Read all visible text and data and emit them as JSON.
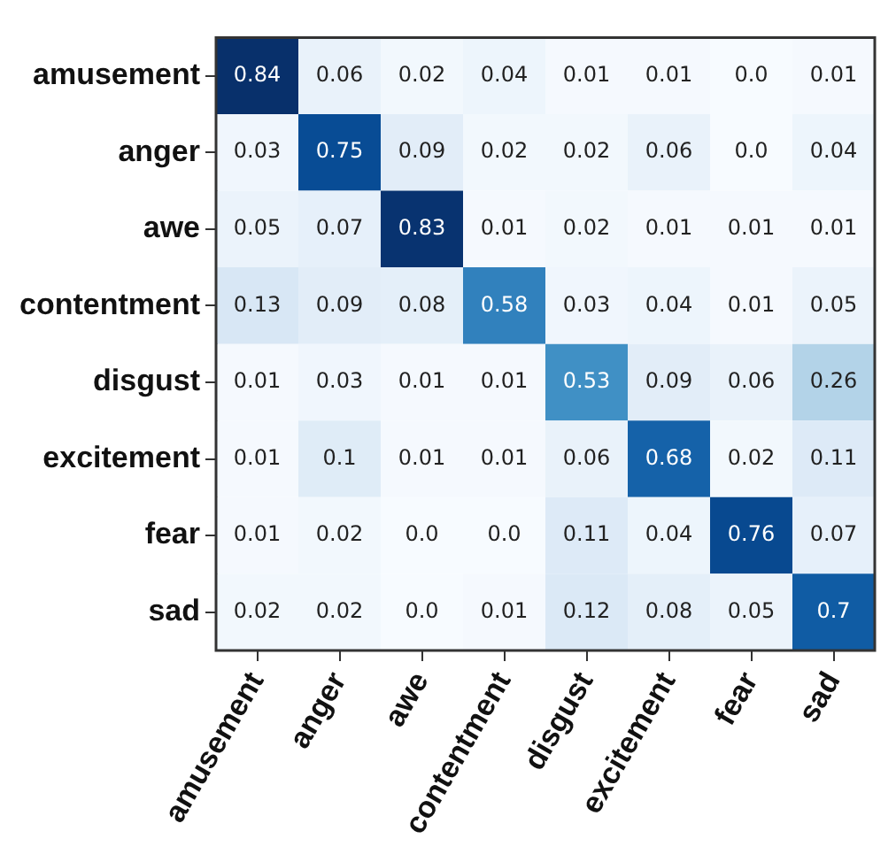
{
  "chart_data": {
    "type": "heatmap",
    "categories": [
      "amusement",
      "anger",
      "awe",
      "contentment",
      "disgust",
      "excitement",
      "fear",
      "sad"
    ],
    "y_categories": [
      "amusement",
      "anger",
      "awe",
      "contentment",
      "disgust",
      "excitement",
      "fear",
      "sad"
    ],
    "cells": [
      [
        0.84,
        0.06,
        0.02,
        0.04,
        0.01,
        0.01,
        0.0,
        0.01
      ],
      [
        0.03,
        0.75,
        0.09,
        0.02,
        0.02,
        0.06,
        0.0,
        0.04
      ],
      [
        0.05,
        0.07,
        0.83,
        0.01,
        0.02,
        0.01,
        0.01,
        0.01
      ],
      [
        0.13,
        0.09,
        0.08,
        0.58,
        0.03,
        0.04,
        0.01,
        0.05
      ],
      [
        0.01,
        0.03,
        0.01,
        0.01,
        0.53,
        0.09,
        0.06,
        0.26
      ],
      [
        0.01,
        0.1,
        0.01,
        0.01,
        0.06,
        0.68,
        0.02,
        0.11
      ],
      [
        0.01,
        0.02,
        0.0,
        0.0,
        0.11,
        0.04,
        0.76,
        0.07
      ],
      [
        0.02,
        0.02,
        0.0,
        0.01,
        0.12,
        0.08,
        0.05,
        0.7
      ]
    ],
    "cell_labels": [
      [
        "0.84",
        "0.06",
        "0.02",
        "0.04",
        "0.01",
        "0.01",
        "0.0",
        "0.01"
      ],
      [
        "0.03",
        "0.75",
        "0.09",
        "0.02",
        "0.02",
        "0.06",
        "0.0",
        "0.04"
      ],
      [
        "0.05",
        "0.07",
        "0.83",
        "0.01",
        "0.02",
        "0.01",
        "0.01",
        "0.01"
      ],
      [
        "0.13",
        "0.09",
        "0.08",
        "0.58",
        "0.03",
        "0.04",
        "0.01",
        "0.05"
      ],
      [
        "0.01",
        "0.03",
        "0.01",
        "0.01",
        "0.53",
        "0.09",
        "0.06",
        "0.26"
      ],
      [
        "0.01",
        "0.1",
        "0.01",
        "0.01",
        "0.06",
        "0.68",
        "0.02",
        "0.11"
      ],
      [
        "0.01",
        "0.02",
        "0.0",
        "0.0",
        "0.11",
        "0.04",
        "0.76",
        "0.07"
      ],
      [
        "0.02",
        "0.02",
        "0.0",
        "0.01",
        "0.12",
        "0.08",
        "0.05",
        "0.7"
      ]
    ]
  }
}
